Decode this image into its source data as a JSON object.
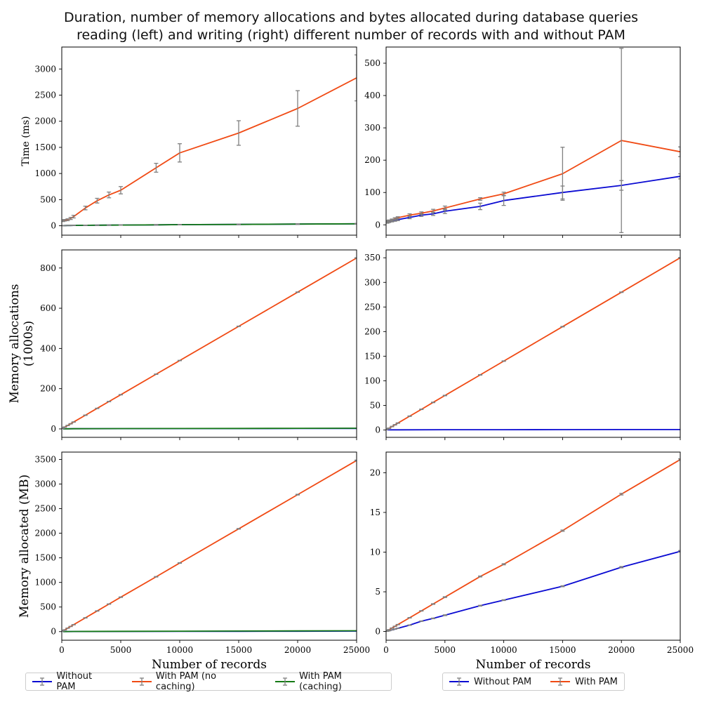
{
  "title_line1": "Duration, number of memory allocations and bytes allocated during database queries",
  "title_line2": "reading (left) and writing (right) different number of records with and without PAM",
  "colors": {
    "without": "#0a0ad2",
    "nocache": "#f04a14",
    "cache": "#157a15",
    "errorbar": "#808080"
  },
  "legend_left": [
    "Without PAM",
    "With PAM (no caching)",
    "With PAM (caching)"
  ],
  "legend_right": [
    "Without PAM",
    "With PAM"
  ],
  "chart_data": [
    {
      "type": "line",
      "panel": "read-time",
      "xlabel": "",
      "ylabel": "Time (ms)",
      "xlim": [
        0,
        25000
      ],
      "ylim": [
        -180,
        3420
      ],
      "xticks": [
        0,
        5000,
        10000,
        15000,
        20000,
        25000
      ],
      "yticks": [
        0,
        500,
        1000,
        1500,
        2000,
        2500,
        3000
      ],
      "show_xticklabels": false,
      "series": [
        {
          "name": "Without PAM",
          "color_key": "without",
          "x": [
            100,
            250,
            500,
            750,
            1000,
            2000,
            3000,
            4000,
            5000,
            8000,
            10000,
            15000,
            20000,
            25000
          ],
          "y": [
            3,
            4,
            5,
            6,
            7,
            9,
            11,
            12,
            14,
            18,
            21,
            26,
            32,
            38
          ],
          "err": [
            2,
            2,
            2,
            2,
            2,
            3,
            3,
            3,
            3,
            4,
            4,
            4,
            5,
            5
          ]
        },
        {
          "name": "With PAM (no caching)",
          "color_key": "nocache",
          "x": [
            100,
            250,
            500,
            750,
            1000,
            2000,
            3000,
            4000,
            5000,
            8000,
            10000,
            15000,
            20000,
            25000
          ],
          "y": [
            95,
            105,
            115,
            140,
            175,
            340,
            480,
            590,
            680,
            1110,
            1395,
            1775,
            2245,
            2830
          ],
          "err": [
            15,
            15,
            18,
            20,
            25,
            35,
            45,
            55,
            70,
            85,
            175,
            235,
            340,
            440
          ]
        },
        {
          "name": "With PAM (caching)",
          "color_key": "cache",
          "x": [
            100,
            250,
            500,
            750,
            1000,
            2000,
            3000,
            4000,
            5000,
            8000,
            10000,
            15000,
            20000,
            25000
          ],
          "y": [
            3,
            4,
            5,
            6,
            7,
            9,
            11,
            12,
            14,
            18,
            21,
            26,
            32,
            38
          ],
          "err": [
            2,
            2,
            2,
            2,
            2,
            3,
            3,
            3,
            3,
            4,
            4,
            4,
            5,
            5
          ]
        }
      ]
    },
    {
      "type": "line",
      "panel": "write-time",
      "xlabel": "",
      "ylabel": "",
      "xlim": [
        0,
        25000
      ],
      "ylim": [
        -32,
        550
      ],
      "xticks": [
        0,
        5000,
        10000,
        15000,
        20000,
        25000
      ],
      "yticks": [
        0,
        100,
        200,
        300,
        400,
        500
      ],
      "show_xticklabels": false,
      "series": [
        {
          "name": "Without PAM",
          "color_key": "without",
          "x": [
            100,
            250,
            500,
            750,
            1000,
            2000,
            3000,
            4000,
            5000,
            8000,
            10000,
            15000,
            20000,
            25000
          ],
          "y": [
            8,
            10,
            12,
            14,
            16,
            23,
            30,
            34,
            42,
            57,
            75,
            100,
            122,
            150
          ],
          "err": [
            3,
            3,
            3,
            3,
            3,
            4,
            4,
            5,
            7,
            10,
            15,
            20,
            15,
            8
          ]
        },
        {
          "name": "With PAM",
          "color_key": "nocache",
          "x": [
            100,
            250,
            500,
            750,
            1000,
            2000,
            3000,
            4000,
            5000,
            8000,
            10000,
            15000,
            20000,
            25000
          ],
          "y": [
            10,
            12,
            15,
            19,
            22,
            30,
            36,
            43,
            52,
            80,
            96,
            158,
            261,
            226
          ],
          "err": [
            3,
            3,
            3,
            3,
            3,
            4,
            4,
            5,
            6,
            4,
            5,
            82,
            285,
            15
          ]
        }
      ]
    },
    {
      "type": "line",
      "panel": "read-allocations",
      "xlabel": "",
      "ylabel": "Memory allocations (1000s)",
      "xlim": [
        0,
        25000
      ],
      "ylim": [
        -42,
        890
      ],
      "xticks": [
        0,
        5000,
        10000,
        15000,
        20000,
        25000
      ],
      "yticks": [
        0,
        200,
        400,
        600,
        800
      ],
      "show_xticklabels": false,
      "series": [
        {
          "name": "Without PAM",
          "color_key": "without",
          "x": [
            100,
            500,
            1000,
            5000,
            10000,
            15000,
            20000,
            25000
          ],
          "y": [
            0.2,
            0.5,
            0.8,
            1.2,
            1.5,
            1.8,
            2.0,
            2.2
          ],
          "err": []
        },
        {
          "name": "With PAM (no caching)",
          "color_key": "nocache",
          "x": [
            100,
            250,
            500,
            750,
            1000,
            2000,
            3000,
            4000,
            5000,
            8000,
            10000,
            15000,
            20000,
            25000
          ],
          "y": [
            3.4,
            9,
            17,
            25.5,
            34,
            68,
            102,
            136,
            170,
            272,
            340,
            510,
            680,
            850
          ],
          "err": [
            1,
            1,
            1,
            1,
            1,
            1,
            1,
            1,
            1,
            1,
            1,
            1,
            1,
            1
          ]
        },
        {
          "name": "With PAM (caching)",
          "color_key": "cache",
          "x": [
            100,
            500,
            1000,
            5000,
            10000,
            15000,
            20000,
            25000
          ],
          "y": [
            0.3,
            0.6,
            1.0,
            1.5,
            2.0,
            2.5,
            3.0,
            3.5
          ],
          "err": []
        }
      ]
    },
    {
      "type": "line",
      "panel": "write-allocations",
      "xlabel": "",
      "ylabel": "",
      "xlim": [
        0,
        25000
      ],
      "ylim": [
        -15,
        366
      ],
      "xticks": [
        0,
        5000,
        10000,
        15000,
        20000,
        25000
      ],
      "yticks": [
        0,
        50,
        100,
        150,
        200,
        250,
        300,
        350
      ],
      "show_xticklabels": false,
      "series": [
        {
          "name": "Without PAM",
          "color_key": "without",
          "x": [
            100,
            500,
            1000,
            5000,
            10000,
            15000,
            20000,
            25000
          ],
          "y": [
            0.1,
            0.2,
            0.3,
            0.5,
            0.6,
            0.7,
            0.8,
            0.9
          ],
          "err": []
        },
        {
          "name": "With PAM",
          "color_key": "nocache",
          "x": [
            100,
            250,
            500,
            750,
            1000,
            2000,
            3000,
            4000,
            5000,
            8000,
            10000,
            15000,
            20000,
            25000
          ],
          "y": [
            1.4,
            3.5,
            7,
            10.5,
            14,
            28,
            42,
            56,
            70,
            112,
            140,
            210,
            280,
            350
          ],
          "err": [
            0.5,
            0.5,
            0.5,
            0.5,
            0.5,
            0.5,
            0.5,
            0.5,
            0.5,
            0.5,
            0.5,
            0.5,
            0.5,
            0.5
          ]
        }
      ]
    },
    {
      "type": "line",
      "panel": "read-bytes",
      "xlabel": "Number of records",
      "ylabel": "Memory allocated (MB)",
      "xlim": [
        0,
        25000
      ],
      "ylim": [
        -175,
        3650
      ],
      "xticks": [
        0,
        5000,
        10000,
        15000,
        20000,
        25000
      ],
      "yticks": [
        0,
        500,
        1000,
        1500,
        2000,
        2500,
        3000,
        3500
      ],
      "show_xticklabels": true,
      "series": [
        {
          "name": "Without PAM",
          "color_key": "without",
          "x": [
            100,
            500,
            1000,
            5000,
            10000,
            15000,
            20000,
            25000
          ],
          "y": [
            0.5,
            1,
            1.5,
            3,
            5,
            6,
            8,
            10
          ],
          "err": []
        },
        {
          "name": "With PAM (no caching)",
          "color_key": "nocache",
          "x": [
            100,
            250,
            500,
            750,
            1000,
            2000,
            3000,
            4000,
            5000,
            8000,
            10000,
            15000,
            20000,
            25000
          ],
          "y": [
            14,
            35,
            70,
            105,
            140,
            280,
            420,
            560,
            700,
            1115,
            1395,
            2090,
            2785,
            3480
          ],
          "err": [
            3,
            3,
            3,
            3,
            3,
            4,
            4,
            4,
            5,
            5,
            6,
            6,
            7,
            7
          ]
        },
        {
          "name": "With PAM (caching)",
          "color_key": "cache",
          "x": [
            100,
            500,
            1000,
            5000,
            10000,
            15000,
            20000,
            25000
          ],
          "y": [
            1,
            2,
            3,
            6,
            9,
            12,
            15,
            18
          ],
          "err": []
        }
      ]
    },
    {
      "type": "line",
      "panel": "write-bytes",
      "xlabel": "Number of records",
      "ylabel": "",
      "xlim": [
        0,
        25000
      ],
      "ylim": [
        -1.1,
        22.6
      ],
      "xticks": [
        0,
        5000,
        10000,
        15000,
        20000,
        25000
      ],
      "yticks": [
        0,
        5,
        10,
        15,
        20
      ],
      "show_xticklabels": true,
      "series": [
        {
          "name": "Without PAM",
          "color_key": "without",
          "x": [
            100,
            250,
            500,
            750,
            1000,
            2000,
            3000,
            4000,
            5000,
            8000,
            10000,
            15000,
            20000,
            25000
          ],
          "y": [
            0.04,
            0.1,
            0.2,
            0.3,
            0.4,
            0.8,
            1.3,
            1.65,
            2.05,
            3.25,
            3.95,
            5.7,
            8.1,
            10.1
          ],
          "err": [
            0.02,
            0.02,
            0.02,
            0.02,
            0.02,
            0.03,
            0.03,
            0.04,
            0.05,
            0.05,
            0.05,
            0.06,
            0.08,
            0.1
          ]
        },
        {
          "name": "With PAM",
          "color_key": "nocache",
          "x": [
            100,
            250,
            500,
            750,
            1000,
            2000,
            3000,
            4000,
            5000,
            8000,
            10000,
            15000,
            20000,
            25000
          ],
          "y": [
            0.09,
            0.22,
            0.43,
            0.65,
            0.87,
            1.73,
            2.6,
            3.46,
            4.33,
            6.93,
            8.47,
            12.7,
            17.3,
            21.65
          ],
          "err": [
            0.02,
            0.02,
            0.02,
            0.02,
            0.02,
            0.03,
            0.03,
            0.04,
            0.05,
            0.06,
            0.07,
            0.08,
            0.1,
            0.1
          ]
        }
      ]
    }
  ]
}
